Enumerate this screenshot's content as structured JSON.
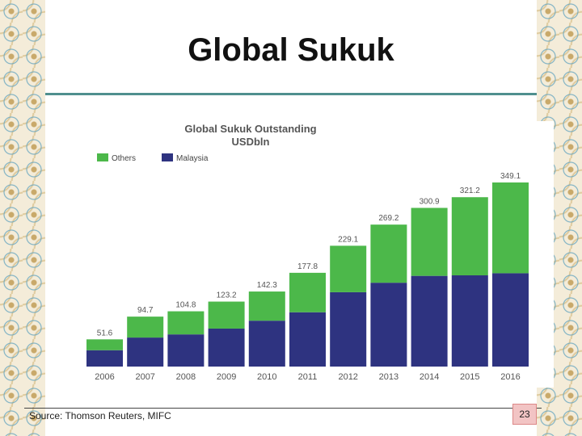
{
  "slide": {
    "title": "Global Sukuk",
    "source": "Source: Thomson Reuters, MIFC",
    "page_number": "23"
  },
  "chart_data": {
    "type": "bar",
    "stacked": true,
    "title": "Global Sukuk Outstanding",
    "subtitle": "USDbln",
    "legend_position": "top-left",
    "categories": [
      "2006",
      "2007",
      "2008",
      "2009",
      "2010",
      "2011",
      "2012",
      "2013",
      "2014",
      "2015",
      "2016"
    ],
    "totals": [
      51.6,
      94.7,
      104.8,
      123.2,
      142.3,
      177.8,
      229.1,
      269.2,
      300.9,
      321.2,
      349.1
    ],
    "total_labels": [
      "51.6",
      "94.7",
      "104.8",
      "123.2",
      "142.3",
      "177.8",
      "229.1",
      "269.2",
      "300.9",
      "321.2",
      "349.1"
    ],
    "series": [
      {
        "name": "Malaysia",
        "color": "#2e3380",
        "values": [
          31,
          55,
          61,
          72,
          87,
          103,
          141,
          159,
          172,
          173,
          177
        ]
      },
      {
        "name": "Others",
        "color": "#4cb84a",
        "values": [
          20.6,
          39.7,
          43.8,
          51.2,
          55.3,
          74.8,
          88.1,
          110.2,
          128.9,
          148.2,
          172.1
        ]
      }
    ],
    "legend_order": [
      "Others",
      "Malaysia"
    ],
    "ylim": [
      0,
      349.1
    ],
    "grid": false
  }
}
